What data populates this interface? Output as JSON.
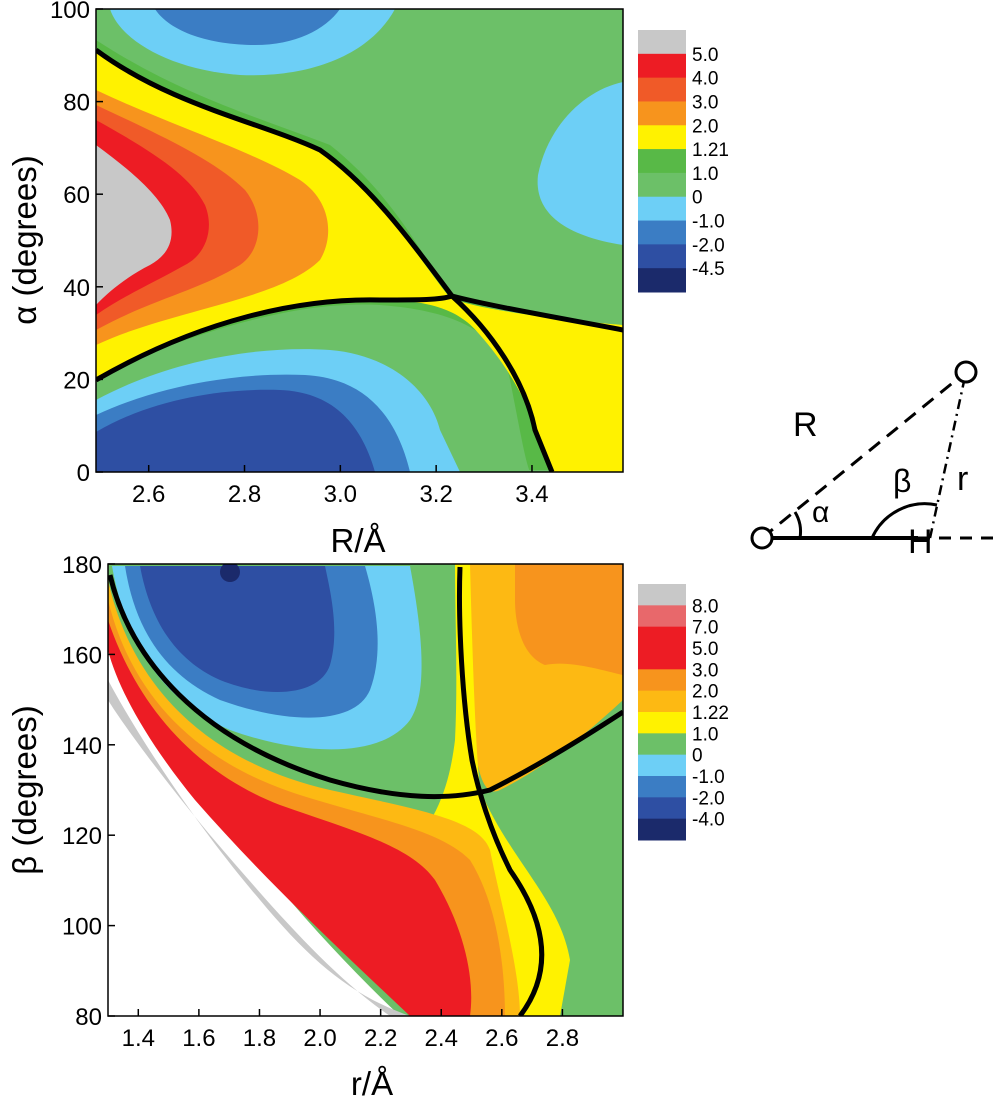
{
  "chart_data": [
    {
      "type": "contour",
      "xlabel": "R/Å",
      "ylabel": "α (degrees)",
      "xlim": [
        2.49,
        3.59
      ],
      "ylim": [
        0,
        100
      ],
      "xticks": [
        "2.6",
        "2.8",
        "3.0",
        "3.2",
        "3.4"
      ],
      "xtick_values": [
        2.6,
        2.8,
        3.0,
        3.2,
        3.4
      ],
      "yticks": [
        "0",
        "20",
        "40",
        "60",
        "80",
        "100"
      ],
      "ytick_values": [
        0,
        20,
        40,
        60,
        80,
        100
      ],
      "levels": [
        "5.0",
        "4.0",
        "3.0",
        "2.0",
        "1.21",
        "1.0",
        "0",
        "-1.0",
        "-2.0",
        "-4.5"
      ],
      "level_colors": [
        "#c8c8c8",
        "#ed1c24",
        "#f05a28",
        "#f7941d",
        "#fff200",
        "#58b947",
        "#6cc068",
        "#6dcff6",
        "#3b7dc4",
        "#2e4fa3",
        "#1b2a6b"
      ],
      "saddle_point": {
        "R": 3.24,
        "alpha": 37.5
      },
      "regions": {
        "max_region": {
          "R": 2.5,
          "alpha": 55,
          "level": "5.0"
        },
        "min_region_lower": {
          "R": 2.85,
          "alpha": 5,
          "level": "-4.5"
        },
        "min_region_upper": {
          "R": 2.85,
          "alpha": 98,
          "level": "-2.0"
        }
      }
    },
    {
      "type": "contour",
      "xlabel": "r/Å",
      "ylabel": "β (degrees)",
      "xlim": [
        1.3,
        3.0
      ],
      "ylim": [
        80,
        180
      ],
      "xticks": [
        "1.4",
        "1.6",
        "1.8",
        "2.0",
        "2.2",
        "2.4",
        "2.6",
        "2.8"
      ],
      "xtick_values": [
        1.4,
        1.6,
        1.8,
        2.0,
        2.2,
        2.4,
        2.6,
        2.8
      ],
      "yticks": [
        "80",
        "100",
        "120",
        "140",
        "160",
        "180"
      ],
      "ytick_values": [
        80,
        100,
        120,
        140,
        160,
        180
      ],
      "levels": [
        "8.0",
        "7.0",
        "5.0",
        "3.0",
        "2.0",
        "1.22",
        "1.0",
        "0",
        "-1.0",
        "-2.0",
        "-4.0"
      ],
      "level_colors": [
        "#c8c8c8",
        "#e8686b",
        "#ed1c24",
        "#ed1c24",
        "#f7941d",
        "#fdb913",
        "#fff200",
        "#6cc068",
        "#6dcff6",
        "#3b7dc4",
        "#2e4fa3",
        "#1b2a6b"
      ],
      "saddle_point": {
        "r": 2.5,
        "beta": 129
      },
      "regions": {
        "min_region": {
          "r": 1.7,
          "beta": 179,
          "level": "-4.0"
        }
      }
    }
  ],
  "diagram": {
    "R_label": "R",
    "r_label": "r",
    "alpha_label": "α",
    "beta_label": "β",
    "H_label": "H"
  }
}
